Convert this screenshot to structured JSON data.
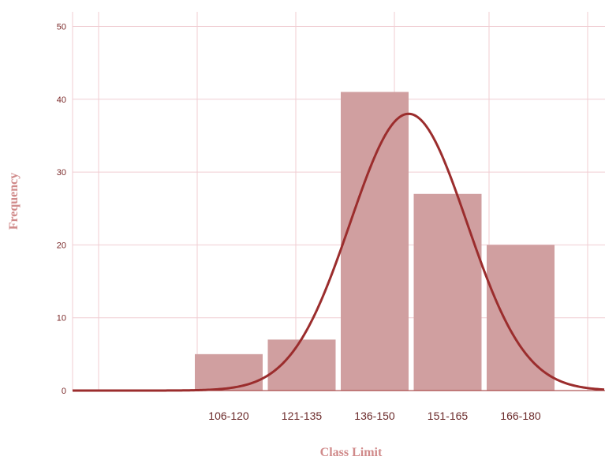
{
  "chart_data": {
    "type": "bar",
    "title": "",
    "xlabel": "Class Limit",
    "ylabel": "Frequency",
    "categories": [
      "106-120",
      "121-135",
      "136-150",
      "151-165",
      "166-180"
    ],
    "values": [
      5,
      7,
      41,
      27,
      20
    ],
    "ylim": [
      0,
      52
    ],
    "yticks": [
      0,
      10,
      20,
      30,
      40,
      50
    ],
    "grid": true,
    "overlay": {
      "type": "line",
      "description": "normal curve",
      "peak": 38
    },
    "colors": {
      "bar": "#d09fa0",
      "curve": "#9b2d2d",
      "grid": "#f0cdd2",
      "text": "#7b2a2a",
      "axis_title": "#d08a8a"
    }
  }
}
